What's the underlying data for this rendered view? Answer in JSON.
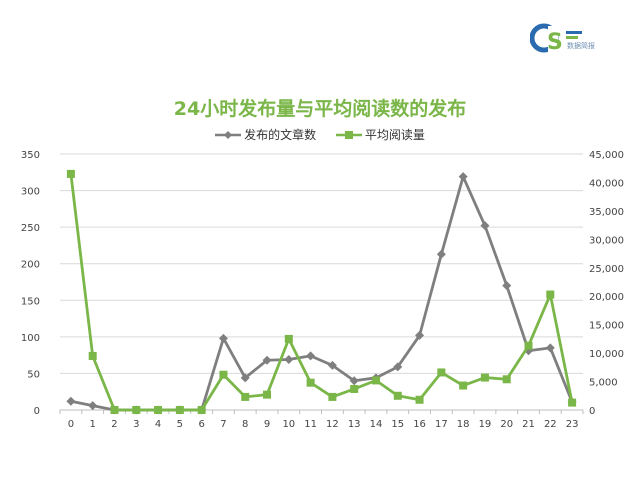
{
  "logo": {
    "caption": "数据简报",
    "accent_color": "#2a6bb0",
    "secondary_color": "#7ab648"
  },
  "chart_data": {
    "type": "line",
    "title": "24小时发布量与平均阅读数的发布",
    "categories": [
      "0",
      "1",
      "2",
      "3",
      "4",
      "5",
      "6",
      "7",
      "8",
      "9",
      "10",
      "11",
      "12",
      "13",
      "14",
      "15",
      "16",
      "17",
      "18",
      "19",
      "20",
      "21",
      "22",
      "23"
    ],
    "series": [
      {
        "name": "发布的文章数",
        "axis": "left",
        "color": "#7f7f7f",
        "marker": "diamond",
        "values": [
          12,
          6,
          0,
          0,
          0,
          0,
          0,
          98,
          44,
          68,
          69,
          74,
          61,
          40,
          44,
          59,
          102,
          213,
          319,
          252,
          170,
          81,
          85,
          11
        ]
      },
      {
        "name": "平均阅读量",
        "axis": "right",
        "color": "#7ab648",
        "marker": "square",
        "values": [
          41500,
          9500,
          0,
          0,
          0,
          0,
          0,
          6200,
          2300,
          2700,
          12500,
          4800,
          2300,
          3700,
          5200,
          2500,
          1800,
          6600,
          4300,
          5700,
          5400,
          11300,
          20300,
          1300
        ]
      }
    ],
    "y_left": {
      "min": 0,
      "max": 350,
      "step": 50,
      "ticks": [
        "0",
        "50",
        "100",
        "150",
        "200",
        "250",
        "300",
        "350"
      ]
    },
    "y_right": {
      "min": 0,
      "max": 45000,
      "step": 5000,
      "ticks": [
        "0",
        "5,000",
        "10,000",
        "15,000",
        "20,000",
        "25,000",
        "30,000",
        "35,000",
        "40,000",
        "45,000"
      ]
    },
    "grid": true,
    "legend_position": "top"
  }
}
